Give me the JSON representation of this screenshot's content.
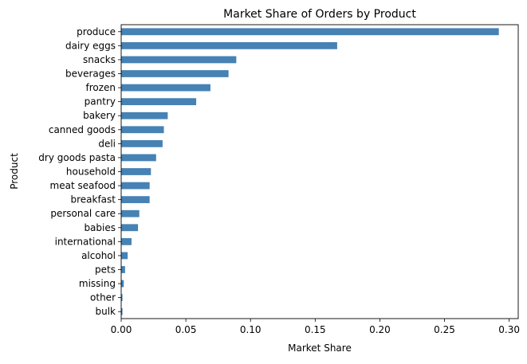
{
  "chart_data": {
    "type": "bar",
    "orientation": "horizontal",
    "title": "Market Share of Orders by Product",
    "xlabel": "Market Share",
    "ylabel": "Product",
    "xlim": [
      0,
      0.307
    ],
    "xticks": [
      0.0,
      0.05,
      0.1,
      0.15,
      0.2,
      0.25,
      0.3
    ],
    "xtick_labels": [
      "0.00",
      "0.05",
      "0.10",
      "0.15",
      "0.20",
      "0.25",
      "0.30"
    ],
    "grid": false,
    "legend": "none",
    "bar_color": "#4682b4",
    "categories": [
      "produce",
      "dairy eggs",
      "snacks",
      "beverages",
      "frozen",
      "pantry",
      "bakery",
      "canned goods",
      "deli",
      "dry goods pasta",
      "household",
      "meat seafood",
      "breakfast",
      "personal care",
      "babies",
      "international",
      "alcohol",
      "pets",
      "missing",
      "other",
      "bulk"
    ],
    "values": [
      0.292,
      0.167,
      0.089,
      0.083,
      0.069,
      0.058,
      0.036,
      0.033,
      0.032,
      0.027,
      0.023,
      0.022,
      0.022,
      0.014,
      0.013,
      0.008,
      0.005,
      0.003,
      0.002,
      0.001,
      0.001
    ]
  }
}
